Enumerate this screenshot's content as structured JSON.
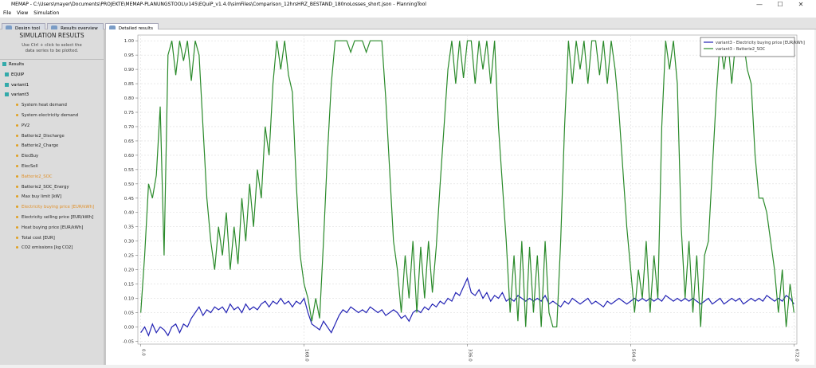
{
  "window": {
    "title": "MEMAP - C:\\Users\\mayer\\Documents\\PROJEKTE\\MEMAP-PLANUNGSTOOL\\v145\\EQuiP_v1.4.0\\simFiles\\Comparison_12hrsHRZ_BESTAND_180noLosses_short.json - PlanningTool"
  },
  "menu": [
    "File",
    "View",
    "Simulation"
  ],
  "tabs": [
    "Design tool",
    "Results overview",
    "Detailed results"
  ],
  "panel": {
    "title": "SIMULATION RESULTS",
    "hint": "Use Ctrl + click to select the data series to be plotted.",
    "tree": {
      "root": "Results",
      "groups": [
        "EQUIP",
        "variant1",
        "variant3"
      ],
      "items": [
        {
          "label": "System heat demand"
        },
        {
          "label": "System electricity demand"
        },
        {
          "label": "PV2"
        },
        {
          "label": "Batterie2_Discharge"
        },
        {
          "label": "Batterie2_Charge"
        },
        {
          "label": "ElecBuy"
        },
        {
          "label": "ElecSell"
        },
        {
          "label": "Batterie2_SOC",
          "selected": true
        },
        {
          "label": "Batterie2_SOC_Energy"
        },
        {
          "label": "Max buy limit [kW]"
        },
        {
          "label": "Electricity buying price [EUR/kWh]",
          "selected": true
        },
        {
          "label": "Electricity selling price [EUR/kWh]"
        },
        {
          "label": "Heat buying price [EUR/kWh]"
        },
        {
          "label": "Total cost [EUR]"
        },
        {
          "label": "CO2 emissions [kg CO2]"
        }
      ]
    }
  },
  "chart_data": {
    "type": "line",
    "grid": true,
    "legend": "top-right",
    "xlim": [
      -3,
      675
    ],
    "ylim": [
      -0.06,
      1.02
    ],
    "xticks": [
      {
        "value": 0,
        "label": "0.0"
      },
      {
        "value": 168,
        "label": "168.0"
      },
      {
        "value": 336,
        "label": "336.0"
      },
      {
        "value": 504,
        "label": "504.0"
      },
      {
        "value": 672,
        "label": "672.0"
      }
    ],
    "yticks": [
      {
        "value": -0.05,
        "label": "-0.05"
      },
      {
        "value": 0,
        "label": "0.00"
      },
      {
        "value": 0.05,
        "label": "0.05"
      },
      {
        "value": 0.1,
        "label": "0.10"
      },
      {
        "value": 0.15,
        "label": "0.15"
      },
      {
        "value": 0.2,
        "label": "0.20"
      },
      {
        "value": 0.25,
        "label": "0.25"
      },
      {
        "value": 0.3,
        "label": "0.30"
      },
      {
        "value": 0.35,
        "label": "0.35"
      },
      {
        "value": 0.4,
        "label": "0.40"
      },
      {
        "value": 0.45,
        "label": "0.45"
      },
      {
        "value": 0.5,
        "label": "0.50"
      },
      {
        "value": 0.55,
        "label": "0.55"
      },
      {
        "value": 0.6,
        "label": "0.60"
      },
      {
        "value": 0.65,
        "label": "0.65"
      },
      {
        "value": 0.7,
        "label": "0.70"
      },
      {
        "value": 0.75,
        "label": "0.75"
      },
      {
        "value": 0.8,
        "label": "0.80"
      },
      {
        "value": 0.85,
        "label": "0.85"
      },
      {
        "value": 0.9,
        "label": "0.90"
      },
      {
        "value": 0.95,
        "label": "0.95"
      },
      {
        "value": 1,
        "label": "1.00"
      }
    ],
    "x": [
      0,
      4,
      8,
      12,
      16,
      20,
      24,
      28,
      32,
      36,
      40,
      44,
      48,
      52,
      56,
      60,
      64,
      68,
      72,
      76,
      80,
      84,
      88,
      92,
      96,
      100,
      104,
      108,
      112,
      116,
      120,
      124,
      128,
      132,
      136,
      140,
      144,
      148,
      152,
      156,
      160,
      164,
      168,
      172,
      176,
      180,
      184,
      188,
      192,
      196,
      200,
      204,
      208,
      212,
      216,
      220,
      224,
      228,
      232,
      236,
      240,
      244,
      248,
      252,
      256,
      260,
      264,
      268,
      272,
      276,
      280,
      284,
      288,
      292,
      296,
      300,
      304,
      308,
      312,
      316,
      320,
      324,
      328,
      332,
      336,
      340,
      344,
      348,
      352,
      356,
      360,
      364,
      368,
      372,
      376,
      380,
      384,
      388,
      392,
      396,
      400,
      404,
      408,
      412,
      416,
      420,
      424,
      428,
      432,
      436,
      440,
      444,
      448,
      452,
      456,
      460,
      464,
      468,
      472,
      476,
      480,
      484,
      488,
      492,
      496,
      500,
      504,
      508,
      512,
      516,
      520,
      524,
      528,
      532,
      536,
      540,
      544,
      548,
      552,
      556,
      560,
      564,
      568,
      572,
      576,
      580,
      584,
      588,
      592,
      596,
      600,
      604,
      608,
      612,
      616,
      620,
      624,
      628,
      632,
      636,
      640,
      644,
      648,
      652,
      656,
      660,
      664,
      668,
      672
    ],
    "series": [
      {
        "name": "variant3 - Electricity buying price [EUR/kWh]",
        "color": "#2323b4",
        "values": [
          -0.02,
          0.0,
          -0.03,
          0.01,
          -0.02,
          0.0,
          -0.01,
          -0.03,
          0.0,
          0.01,
          -0.02,
          0.01,
          0.0,
          0.03,
          0.05,
          0.07,
          0.04,
          0.06,
          0.05,
          0.07,
          0.06,
          0.07,
          0.05,
          0.08,
          0.06,
          0.07,
          0.05,
          0.08,
          0.06,
          0.07,
          0.06,
          0.08,
          0.09,
          0.07,
          0.09,
          0.08,
          0.1,
          0.08,
          0.09,
          0.07,
          0.09,
          0.08,
          0.1,
          0.05,
          0.01,
          0.0,
          -0.01,
          0.02,
          0.0,
          -0.02,
          0.01,
          0.04,
          0.06,
          0.05,
          0.07,
          0.06,
          0.05,
          0.06,
          0.05,
          0.07,
          0.06,
          0.05,
          0.06,
          0.04,
          0.05,
          0.06,
          0.05,
          0.03,
          0.04,
          0.02,
          0.05,
          0.06,
          0.05,
          0.07,
          0.06,
          0.08,
          0.07,
          0.09,
          0.08,
          0.1,
          0.09,
          0.12,
          0.11,
          0.14,
          0.17,
          0.12,
          0.11,
          0.13,
          0.1,
          0.12,
          0.09,
          0.11,
          0.1,
          0.12,
          0.09,
          0.1,
          0.09,
          0.11,
          0.1,
          0.09,
          0.1,
          0.09,
          0.1,
          0.09,
          0.11,
          0.08,
          0.09,
          0.08,
          0.07,
          0.09,
          0.08,
          0.1,
          0.09,
          0.08,
          0.09,
          0.1,
          0.08,
          0.09,
          0.08,
          0.07,
          0.09,
          0.08,
          0.09,
          0.1,
          0.09,
          0.08,
          0.09,
          0.1,
          0.09,
          0.1,
          0.09,
          0.1,
          0.09,
          0.1,
          0.09,
          0.11,
          0.1,
          0.09,
          0.1,
          0.09,
          0.1,
          0.09,
          0.1,
          0.09,
          0.08,
          0.09,
          0.1,
          0.08,
          0.09,
          0.1,
          0.08,
          0.09,
          0.1,
          0.09,
          0.1,
          0.08,
          0.09,
          0.1,
          0.09,
          0.1,
          0.09,
          0.11,
          0.1,
          0.09,
          0.1,
          0.09,
          0.11,
          0.1,
          0.08
        ]
      },
      {
        "name": "variant3 - Batterie2_SOC",
        "color": "#2a8a2a",
        "values": [
          0.05,
          0.25,
          0.5,
          0.45,
          0.53,
          0.77,
          0.25,
          0.95,
          1.0,
          0.88,
          1.0,
          0.93,
          1.0,
          0.86,
          1.0,
          0.95,
          0.7,
          0.45,
          0.3,
          0.2,
          0.35,
          0.25,
          0.4,
          0.2,
          0.35,
          0.22,
          0.45,
          0.3,
          0.5,
          0.35,
          0.55,
          0.45,
          0.7,
          0.6,
          0.85,
          1.0,
          0.9,
          1.0,
          0.88,
          0.82,
          0.5,
          0.25,
          0.15,
          0.1,
          0.02,
          0.1,
          0.03,
          0.3,
          0.6,
          0.85,
          1.0,
          1.0,
          1.0,
          1.0,
          0.96,
          1.0,
          1.0,
          1.0,
          0.96,
          1.0,
          1.0,
          1.0,
          1.0,
          0.8,
          0.55,
          0.3,
          0.2,
          0.05,
          0.25,
          0.1,
          0.3,
          0.05,
          0.28,
          0.1,
          0.3,
          0.12,
          0.28,
          0.5,
          0.7,
          0.9,
          1.0,
          0.85,
          1.0,
          0.87,
          1.0,
          1.0,
          0.85,
          1.0,
          0.9,
          1.0,
          0.85,
          1.0,
          0.7,
          0.5,
          0.3,
          0.05,
          0.25,
          0.02,
          0.3,
          0.0,
          0.28,
          0.05,
          0.25,
          0.0,
          0.3,
          0.05,
          0.0,
          0.0,
          0.3,
          0.7,
          1.0,
          0.85,
          1.0,
          0.9,
          1.0,
          0.85,
          1.0,
          1.0,
          0.88,
          1.0,
          0.85,
          1.0,
          0.9,
          0.75,
          0.55,
          0.35,
          0.2,
          0.05,
          0.2,
          0.1,
          0.3,
          0.05,
          0.25,
          0.1,
          0.7,
          1.0,
          0.9,
          1.0,
          0.85,
          0.35,
          0.1,
          0.3,
          0.05,
          0.25,
          0.0,
          0.25,
          0.3,
          0.55,
          0.8,
          1.0,
          0.9,
          1.0,
          0.85,
          1.0,
          0.95,
          1.0,
          0.9,
          0.85,
          0.6,
          0.45,
          0.45,
          0.4,
          0.3,
          0.2,
          0.05,
          0.2,
          0.0,
          0.15,
          0.05
        ]
      }
    ]
  }
}
